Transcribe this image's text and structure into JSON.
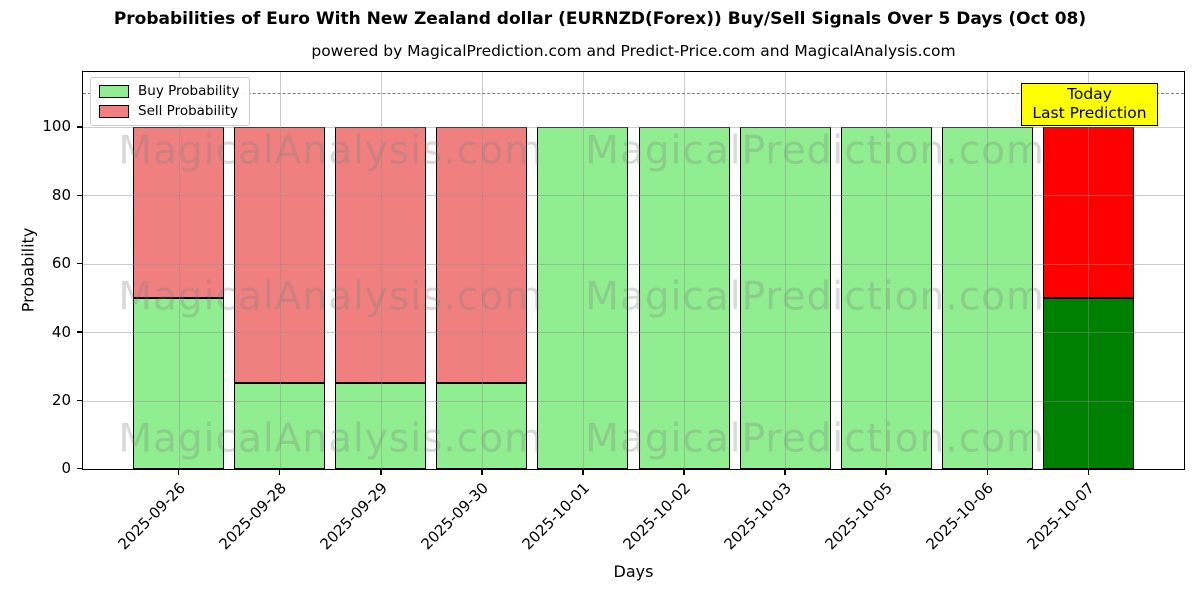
{
  "title": "Probabilities of Euro With New Zealand dollar (EURNZD(Forex)) Buy/Sell Signals Over 5 Days (Oct 08)",
  "subtitle": "powered by MagicalPrediction.com and Predict-Price.com and MagicalAnalysis.com",
  "legend": [
    {
      "label": "Buy Probability",
      "color": "#90ee90"
    },
    {
      "label": "Sell Probability",
      "color": "#f08080"
    }
  ],
  "annotation": {
    "line1": "Today",
    "line2": "Last Prediction",
    "bg_color": "#ffff00",
    "border_color": "#000000"
  },
  "watermarks": {
    "left_text": "MagicalAnalysis.com",
    "right_text": "MagicalPrediction.com"
  },
  "chart_data": {
    "type": "bar",
    "stacked": true,
    "title": "Probabilities of Euro With New Zealand dollar (EURNZD(Forex)) Buy/Sell Signals Over 5 Days (Oct 08)",
    "xlabel": "Days",
    "ylabel": "Probability",
    "categories": [
      "2025-09-26",
      "2025-09-28",
      "2025-09-29",
      "2025-09-30",
      "2025-10-01",
      "2025-10-02",
      "2025-10-03",
      "2025-10-05",
      "2025-10-06",
      "2025-10-07"
    ],
    "series": [
      {
        "name": "Buy Probability",
        "color": "#90ee90",
        "values": [
          50,
          25,
          25,
          25,
          100,
          100,
          100,
          100,
          100,
          50
        ]
      },
      {
        "name": "Sell Probability",
        "color": "#f08080",
        "values": [
          50,
          75,
          75,
          75,
          0,
          0,
          0,
          0,
          0,
          50
        ]
      }
    ],
    "highlight_last_bar": {
      "annotation": "Today Last Prediction",
      "buy_color": "#008000",
      "sell_color": "#ff0000"
    },
    "bar_edge_color": "#000000",
    "yticks": [
      0,
      20,
      40,
      60,
      80,
      100
    ],
    "ylim": [
      0,
      116
    ],
    "dashed_line_y": 110,
    "dashed_line_color": "#7f7f7f",
    "grid": true,
    "legend_position": "upper left"
  }
}
